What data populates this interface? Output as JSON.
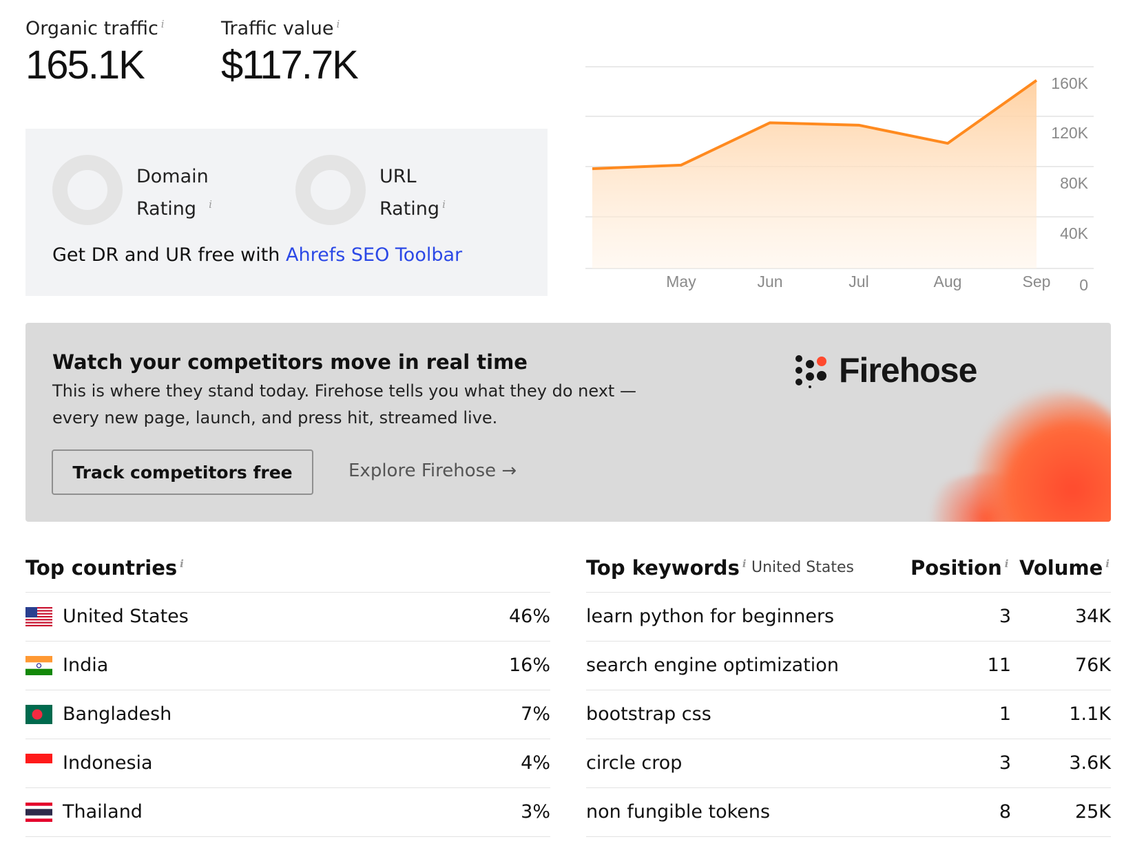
{
  "metrics": {
    "organic_traffic_label": "Organic traffic",
    "organic_traffic_value": "165.1K",
    "traffic_value_label": "Traffic value",
    "traffic_value_value": "$117.7K"
  },
  "ratings": {
    "domain_rating_label_1": "Domain",
    "domain_rating_label_2": "Rating",
    "url_rating_label_1": "URL",
    "url_rating_label_2": "Rating",
    "toolbar_text": "Get DR and UR free with ",
    "toolbar_link": "Ahrefs SEO Toolbar"
  },
  "chart_data": {
    "type": "area",
    "x": [
      "",
      "May",
      "Jun",
      "Jul",
      "Aug",
      "Sep"
    ],
    "x_tick_labels": [
      "May",
      "Jun",
      "Jul",
      "Aug",
      "Sep"
    ],
    "values": [
      79000,
      82000,
      117000,
      115000,
      100000,
      152000
    ],
    "y_ticks": [
      "160K",
      "120K",
      "80K",
      "40K",
      "0"
    ],
    "ylim": [
      0,
      160000
    ],
    "grid": true,
    "line_color": "#ff8a1f",
    "fill_color": "#ffd9b0"
  },
  "promo": {
    "title": "Watch your competitors move in real time",
    "desc": "This is where they stand today. Firehose tells you what they do next — every new page, launch, and press hit, streamed live.",
    "button_label": "Track competitors free",
    "link_label": "Explore Firehose →",
    "brand_name": "Firehose",
    "accent_color": "#ff4a2e"
  },
  "top_countries": {
    "title": "Top countries",
    "rows": [
      {
        "name": "United States",
        "pct": "46%",
        "flag": "us-flag-icon"
      },
      {
        "name": "India",
        "pct": "16%",
        "flag": "india-flag-icon"
      },
      {
        "name": "Bangladesh",
        "pct": "7%",
        "flag": "bangladesh-flag-icon"
      },
      {
        "name": "Indonesia",
        "pct": "4%",
        "flag": "indonesia-flag-icon"
      },
      {
        "name": "Thailand",
        "pct": "3%",
        "flag": "thailand-flag-icon"
      }
    ]
  },
  "top_keywords": {
    "title": "Top keywords",
    "country": "United States",
    "position_header": "Position",
    "volume_header": "Volume",
    "rows": [
      {
        "keyword": "learn python for beginners",
        "position": "3",
        "volume": "34K"
      },
      {
        "keyword": "search engine optimization",
        "position": "11",
        "volume": "76K"
      },
      {
        "keyword": "bootstrap css",
        "position": "1",
        "volume": "1.1K"
      },
      {
        "keyword": "circle crop",
        "position": "3",
        "volume": "3.6K"
      },
      {
        "keyword": "non fungible tokens",
        "position": "8",
        "volume": "25K"
      }
    ]
  },
  "info_glyph": "i"
}
